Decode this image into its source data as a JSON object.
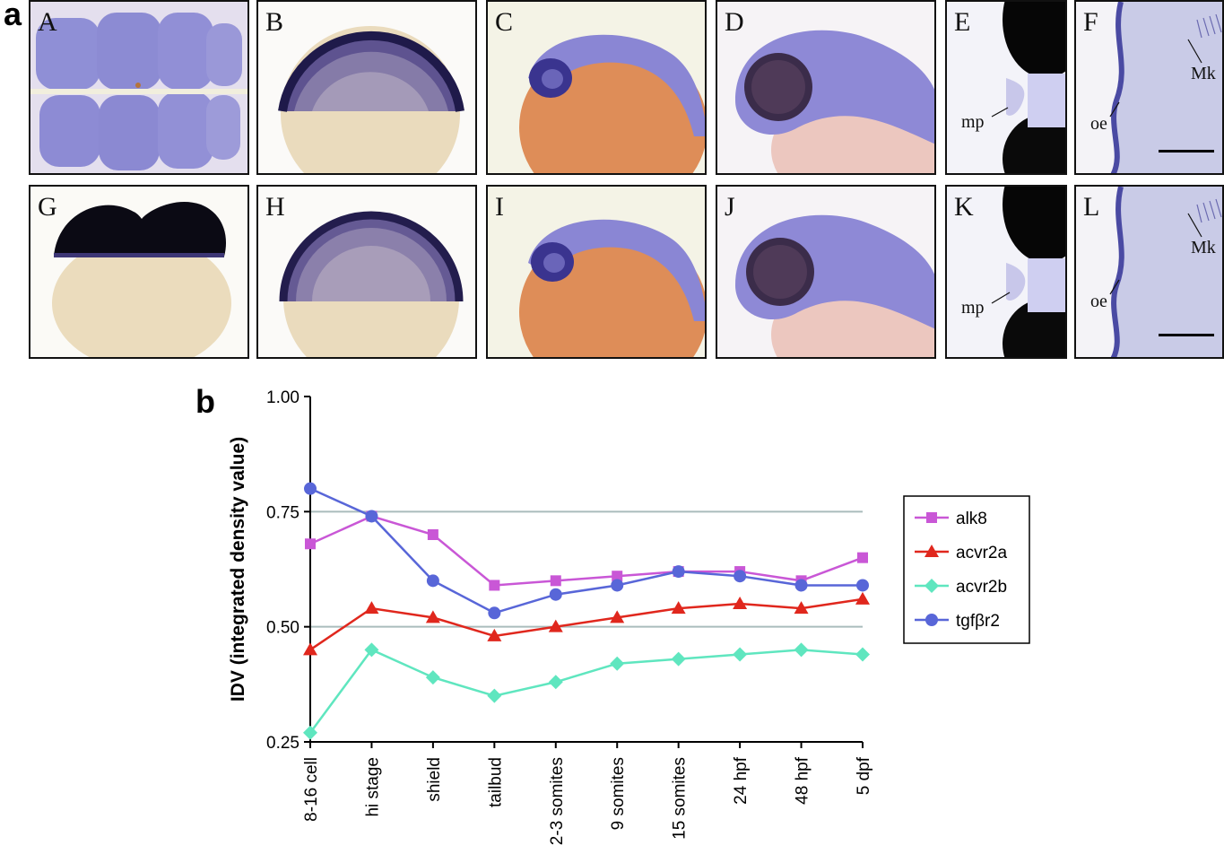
{
  "figure": {
    "part_a_letter": "a",
    "part_b_letter": "b"
  },
  "panels": {
    "A": {
      "label": "A"
    },
    "B": {
      "label": "B"
    },
    "C": {
      "label": "C"
    },
    "D": {
      "label": "D"
    },
    "E": {
      "label": "E",
      "annotations": [
        "mp"
      ]
    },
    "F": {
      "label": "F",
      "annotations": [
        "Mk",
        "oe"
      ]
    },
    "G": {
      "label": "G"
    },
    "H": {
      "label": "H"
    },
    "I": {
      "label": "I"
    },
    "J": {
      "label": "J"
    },
    "K": {
      "label": "K",
      "annotations": [
        "mp"
      ]
    },
    "L": {
      "label": "L",
      "annotations": [
        "Mk",
        "oe"
      ]
    }
  },
  "colors": {
    "stain_purple": "#7b78c9",
    "stain_dark": "#15122e",
    "yolk_orange": "#e0905a",
    "yolk_pale": "#ebdcc0",
    "alk8": "#c957d6",
    "acvr2a": "#e0271d",
    "acvr2b": "#5fe6bf",
    "tgfbr2": "#5866d8",
    "gridline": "#aabcbc"
  },
  "chart_data": {
    "type": "line",
    "ylabel": "IDV (integrated density value)",
    "xlabel": "",
    "categories": [
      "8-16 cell",
      "hi stage",
      "shield",
      "tailbud",
      "2-3 somites",
      "9 somites",
      "15 somites",
      "24 hpf",
      "48 hpf",
      "5 dpf"
    ],
    "ylim": [
      0.25,
      1.0
    ],
    "yticks": [
      "0.25",
      "0.50",
      "0.75",
      "1.00"
    ],
    "ytick_values": [
      0.25,
      0.5,
      0.75,
      1.0
    ],
    "gridlines_at": [
      0.5,
      0.75
    ],
    "legend_position": "right",
    "series": [
      {
        "name": "alk8",
        "marker": "square",
        "values": [
          0.68,
          0.74,
          0.7,
          0.59,
          0.6,
          0.61,
          0.62,
          0.62,
          0.6,
          0.65
        ]
      },
      {
        "name": "acvr2a",
        "marker": "triangle",
        "values": [
          0.45,
          0.54,
          0.52,
          0.48,
          0.5,
          0.52,
          0.54,
          0.55,
          0.54,
          0.56
        ]
      },
      {
        "name": "acvr2b",
        "marker": "diamond",
        "values": [
          0.27,
          0.45,
          0.39,
          0.35,
          0.38,
          0.42,
          0.43,
          0.44,
          0.45,
          0.44
        ]
      },
      {
        "name": "tgfβr2",
        "marker": "circle",
        "values": [
          0.8,
          0.74,
          0.6,
          0.53,
          0.57,
          0.59,
          0.62,
          0.61,
          0.59,
          0.59
        ]
      }
    ]
  }
}
